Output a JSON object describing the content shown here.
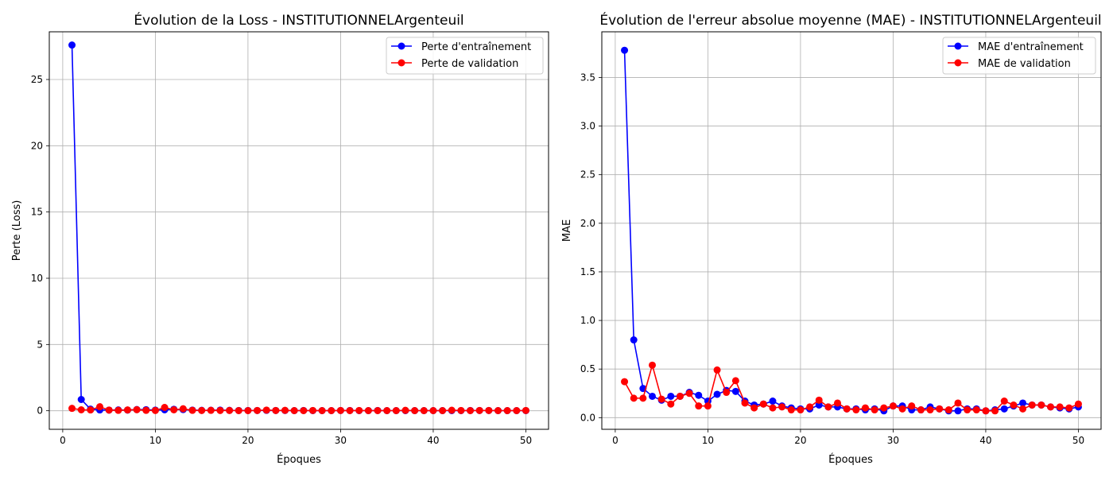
{
  "chart_data": [
    {
      "type": "line",
      "title": "Évolution de la Loss - INSTITUTIONNELArgenteuil",
      "xlabel": "Époques",
      "ylabel": "Perte (Loss)",
      "xlim": [
        -1.45,
        52.45
      ],
      "ylim": [
        -1.4,
        28.6
      ],
      "xticks": [
        0,
        10,
        20,
        30,
        40,
        50
      ],
      "yticks": [
        0,
        5,
        10,
        15,
        20,
        25
      ],
      "grid": true,
      "legend": "top-right",
      "x": [
        1,
        2,
        3,
        4,
        5,
        6,
        7,
        8,
        9,
        10,
        11,
        12,
        13,
        14,
        15,
        16,
        17,
        18,
        19,
        20,
        21,
        22,
        23,
        24,
        25,
        26,
        27,
        28,
        29,
        30,
        31,
        32,
        33,
        34,
        35,
        36,
        37,
        38,
        39,
        40,
        41,
        42,
        43,
        44,
        45,
        46,
        47,
        48,
        49,
        50
      ],
      "series": [
        {
          "name": "Perte d'entraînement",
          "color": "#0000ff",
          "values": [
            27.6,
            0.85,
            0.12,
            0.06,
            0.05,
            0.06,
            0.05,
            0.09,
            0.08,
            0.05,
            0.07,
            0.11,
            0.09,
            0.05,
            0.03,
            0.04,
            0.05,
            0.03,
            0.02,
            0.02,
            0.02,
            0.03,
            0.02,
            0.02,
            0.01,
            0.02,
            0.01,
            0.01,
            0.01,
            0.02,
            0.02,
            0.01,
            0.01,
            0.02,
            0.01,
            0.01,
            0.01,
            0.01,
            0.01,
            0.01,
            0.01,
            0.01,
            0.01,
            0.02,
            0.02,
            0.02,
            0.01,
            0.01,
            0.01,
            0.01
          ]
        },
        {
          "name": "Perte de validation",
          "color": "#ff0000",
          "values": [
            0.18,
            0.07,
            0.06,
            0.3,
            0.05,
            0.03,
            0.06,
            0.08,
            0.03,
            0.02,
            0.25,
            0.07,
            0.15,
            0.03,
            0.02,
            0.03,
            0.02,
            0.02,
            0.01,
            0.01,
            0.02,
            0.05,
            0.02,
            0.03,
            0.01,
            0.01,
            0.02,
            0.01,
            0.01,
            0.02,
            0.01,
            0.02,
            0.01,
            0.01,
            0.01,
            0.01,
            0.03,
            0.01,
            0.01,
            0.01,
            0.01,
            0.04,
            0.02,
            0.01,
            0.02,
            0.02,
            0.01,
            0.01,
            0.01,
            0.02
          ]
        }
      ]
    },
    {
      "type": "line",
      "title": "Évolution de l'erreur absolue moyenne (MAE) - INSTITUTIONNELArgenteuil",
      "xlabel": "Époques",
      "ylabel": "MAE",
      "xlim": [
        -1.45,
        52.45
      ],
      "ylim": [
        -0.12,
        3.97
      ],
      "xticks": [
        0,
        10,
        20,
        30,
        40,
        50
      ],
      "yticks": [
        0.0,
        0.5,
        1.0,
        1.5,
        2.0,
        2.5,
        3.0,
        3.5
      ],
      "ytick_labels": [
        "0.0",
        "0.5",
        "1.0",
        "1.5",
        "2.0",
        "2.5",
        "3.0",
        "3.5"
      ],
      "grid": true,
      "legend": "top-right",
      "x": [
        1,
        2,
        3,
        4,
        5,
        6,
        7,
        8,
        9,
        10,
        11,
        12,
        13,
        14,
        15,
        16,
        17,
        18,
        19,
        20,
        21,
        22,
        23,
        24,
        25,
        26,
        27,
        28,
        29,
        30,
        31,
        32,
        33,
        34,
        35,
        36,
        37,
        38,
        39,
        40,
        41,
        42,
        43,
        44,
        45,
        46,
        47,
        48,
        49,
        50
      ],
      "series": [
        {
          "name": "MAE d'entraînement",
          "color": "#0000ff",
          "values": [
            3.78,
            0.8,
            0.3,
            0.22,
            0.18,
            0.22,
            0.22,
            0.26,
            0.23,
            0.17,
            0.24,
            0.28,
            0.27,
            0.17,
            0.13,
            0.14,
            0.17,
            0.12,
            0.1,
            0.09,
            0.09,
            0.13,
            0.11,
            0.11,
            0.09,
            0.09,
            0.08,
            0.09,
            0.07,
            0.12,
            0.12,
            0.08,
            0.08,
            0.11,
            0.09,
            0.07,
            0.07,
            0.09,
            0.09,
            0.07,
            0.08,
            0.09,
            0.12,
            0.15,
            0.13,
            0.13,
            0.11,
            0.1,
            0.09,
            0.11
          ]
        },
        {
          "name": "MAE de validation",
          "color": "#ff0000",
          "values": [
            0.37,
            0.2,
            0.2,
            0.54,
            0.19,
            0.14,
            0.22,
            0.25,
            0.12,
            0.12,
            0.49,
            0.26,
            0.38,
            0.15,
            0.1,
            0.14,
            0.1,
            0.11,
            0.08,
            0.08,
            0.11,
            0.18,
            0.11,
            0.15,
            0.09,
            0.08,
            0.1,
            0.08,
            0.1,
            0.12,
            0.09,
            0.12,
            0.08,
            0.08,
            0.09,
            0.08,
            0.15,
            0.08,
            0.08,
            0.07,
            0.07,
            0.17,
            0.13,
            0.09,
            0.13,
            0.13,
            0.11,
            0.11,
            0.1,
            0.14
          ]
        }
      ]
    }
  ]
}
